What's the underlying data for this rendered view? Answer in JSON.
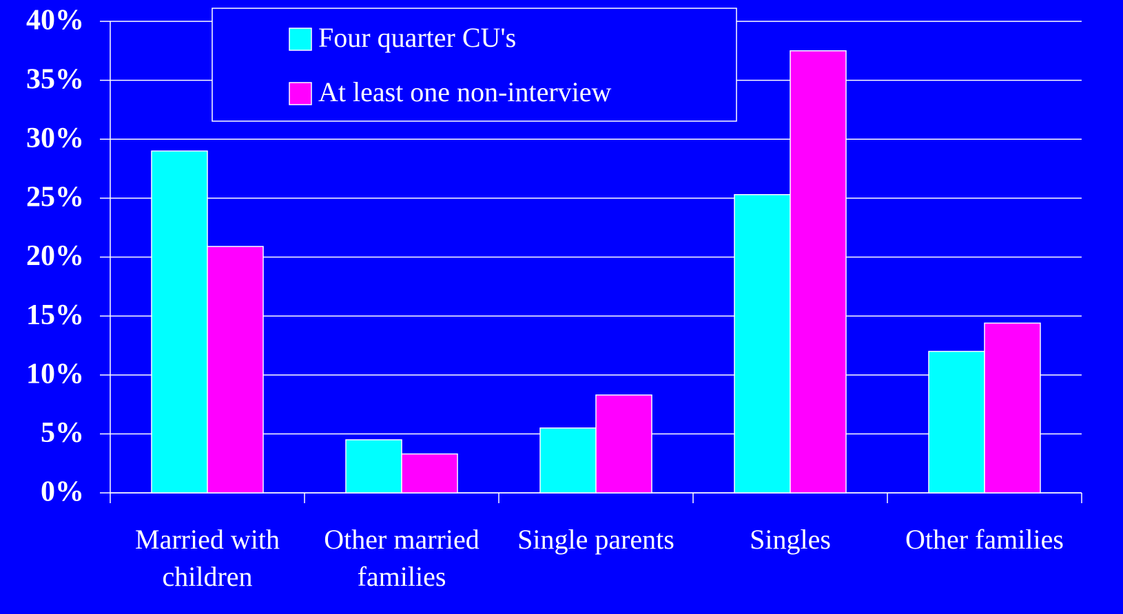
{
  "chart_data": {
    "type": "bar",
    "categories": [
      "Married with children",
      "Other married families",
      "Single parents",
      "Singles",
      "Other families"
    ],
    "series": [
      {
        "name": "Four quarter CU's",
        "color": "#00ffff",
        "values": [
          29.0,
          4.5,
          5.5,
          25.3,
          12.0
        ]
      },
      {
        "name": "At least one non-interview",
        "color": "#ff00ff",
        "values": [
          20.9,
          3.3,
          8.3,
          37.5,
          14.4
        ]
      }
    ],
    "ylim": [
      0,
      40
    ],
    "yticks": [
      {
        "value": 0,
        "label": "0%"
      },
      {
        "value": 5,
        "label": "5%"
      },
      {
        "value": 10,
        "label": "10%"
      },
      {
        "value": 15,
        "label": "15%"
      },
      {
        "value": 20,
        "label": "20%"
      },
      {
        "value": 25,
        "label": "25%"
      },
      {
        "value": 30,
        "label": "30%"
      },
      {
        "value": 35,
        "label": "35%"
      },
      {
        "value": 40,
        "label": "40%"
      }
    ],
    "grid": true,
    "legend": "top"
  }
}
